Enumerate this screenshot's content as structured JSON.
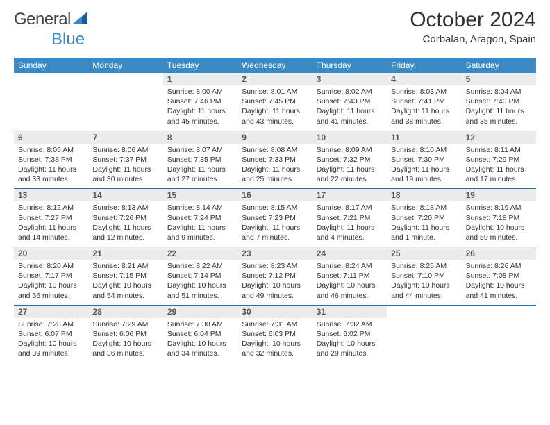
{
  "brand": {
    "name_part1": "General",
    "name_part2": "Blue",
    "triangle_color": "#1b5a96"
  },
  "header": {
    "title": "October 2024",
    "location": "Corbalan, Aragon, Spain"
  },
  "colors": {
    "accent": "#3b8ac4",
    "row_divider": "#2a6ea8",
    "daynum_bg": "#ececec",
    "text": "#222222"
  },
  "typography": {
    "title_fontsize_pt": 22,
    "location_fontsize_pt": 11,
    "header_fontsize_pt": 9,
    "daynum_fontsize_pt": 9,
    "body_fontsize_pt": 8
  },
  "day_names": [
    "Sunday",
    "Monday",
    "Tuesday",
    "Wednesday",
    "Thursday",
    "Friday",
    "Saturday"
  ],
  "weeks": [
    [
      {
        "num": "",
        "lines": []
      },
      {
        "num": "",
        "lines": []
      },
      {
        "num": "1",
        "lines": [
          "Sunrise: 8:00 AM",
          "Sunset: 7:46 PM",
          "Daylight: 11 hours",
          "and 45 minutes."
        ]
      },
      {
        "num": "2",
        "lines": [
          "Sunrise: 8:01 AM",
          "Sunset: 7:45 PM",
          "Daylight: 11 hours",
          "and 43 minutes."
        ]
      },
      {
        "num": "3",
        "lines": [
          "Sunrise: 8:02 AM",
          "Sunset: 7:43 PM",
          "Daylight: 11 hours",
          "and 41 minutes."
        ]
      },
      {
        "num": "4",
        "lines": [
          "Sunrise: 8:03 AM",
          "Sunset: 7:41 PM",
          "Daylight: 11 hours",
          "and 38 minutes."
        ]
      },
      {
        "num": "5",
        "lines": [
          "Sunrise: 8:04 AM",
          "Sunset: 7:40 PM",
          "Daylight: 11 hours",
          "and 35 minutes."
        ]
      }
    ],
    [
      {
        "num": "6",
        "lines": [
          "Sunrise: 8:05 AM",
          "Sunset: 7:38 PM",
          "Daylight: 11 hours",
          "and 33 minutes."
        ]
      },
      {
        "num": "7",
        "lines": [
          "Sunrise: 8:06 AM",
          "Sunset: 7:37 PM",
          "Daylight: 11 hours",
          "and 30 minutes."
        ]
      },
      {
        "num": "8",
        "lines": [
          "Sunrise: 8:07 AM",
          "Sunset: 7:35 PM",
          "Daylight: 11 hours",
          "and 27 minutes."
        ]
      },
      {
        "num": "9",
        "lines": [
          "Sunrise: 8:08 AM",
          "Sunset: 7:33 PM",
          "Daylight: 11 hours",
          "and 25 minutes."
        ]
      },
      {
        "num": "10",
        "lines": [
          "Sunrise: 8:09 AM",
          "Sunset: 7:32 PM",
          "Daylight: 11 hours",
          "and 22 minutes."
        ]
      },
      {
        "num": "11",
        "lines": [
          "Sunrise: 8:10 AM",
          "Sunset: 7:30 PM",
          "Daylight: 11 hours",
          "and 19 minutes."
        ]
      },
      {
        "num": "12",
        "lines": [
          "Sunrise: 8:11 AM",
          "Sunset: 7:29 PM",
          "Daylight: 11 hours",
          "and 17 minutes."
        ]
      }
    ],
    [
      {
        "num": "13",
        "lines": [
          "Sunrise: 8:12 AM",
          "Sunset: 7:27 PM",
          "Daylight: 11 hours",
          "and 14 minutes."
        ]
      },
      {
        "num": "14",
        "lines": [
          "Sunrise: 8:13 AM",
          "Sunset: 7:26 PM",
          "Daylight: 11 hours",
          "and 12 minutes."
        ]
      },
      {
        "num": "15",
        "lines": [
          "Sunrise: 8:14 AM",
          "Sunset: 7:24 PM",
          "Daylight: 11 hours",
          "and 9 minutes."
        ]
      },
      {
        "num": "16",
        "lines": [
          "Sunrise: 8:15 AM",
          "Sunset: 7:23 PM",
          "Daylight: 11 hours",
          "and 7 minutes."
        ]
      },
      {
        "num": "17",
        "lines": [
          "Sunrise: 8:17 AM",
          "Sunset: 7:21 PM",
          "Daylight: 11 hours",
          "and 4 minutes."
        ]
      },
      {
        "num": "18",
        "lines": [
          "Sunrise: 8:18 AM",
          "Sunset: 7:20 PM",
          "Daylight: 11 hours",
          "and 1 minute."
        ]
      },
      {
        "num": "19",
        "lines": [
          "Sunrise: 8:19 AM",
          "Sunset: 7:18 PM",
          "Daylight: 10 hours",
          "and 59 minutes."
        ]
      }
    ],
    [
      {
        "num": "20",
        "lines": [
          "Sunrise: 8:20 AM",
          "Sunset: 7:17 PM",
          "Daylight: 10 hours",
          "and 56 minutes."
        ]
      },
      {
        "num": "21",
        "lines": [
          "Sunrise: 8:21 AM",
          "Sunset: 7:15 PM",
          "Daylight: 10 hours",
          "and 54 minutes."
        ]
      },
      {
        "num": "22",
        "lines": [
          "Sunrise: 8:22 AM",
          "Sunset: 7:14 PM",
          "Daylight: 10 hours",
          "and 51 minutes."
        ]
      },
      {
        "num": "23",
        "lines": [
          "Sunrise: 8:23 AM",
          "Sunset: 7:12 PM",
          "Daylight: 10 hours",
          "and 49 minutes."
        ]
      },
      {
        "num": "24",
        "lines": [
          "Sunrise: 8:24 AM",
          "Sunset: 7:11 PM",
          "Daylight: 10 hours",
          "and 46 minutes."
        ]
      },
      {
        "num": "25",
        "lines": [
          "Sunrise: 8:25 AM",
          "Sunset: 7:10 PM",
          "Daylight: 10 hours",
          "and 44 minutes."
        ]
      },
      {
        "num": "26",
        "lines": [
          "Sunrise: 8:26 AM",
          "Sunset: 7:08 PM",
          "Daylight: 10 hours",
          "and 41 minutes."
        ]
      }
    ],
    [
      {
        "num": "27",
        "lines": [
          "Sunrise: 7:28 AM",
          "Sunset: 6:07 PM",
          "Daylight: 10 hours",
          "and 39 minutes."
        ]
      },
      {
        "num": "28",
        "lines": [
          "Sunrise: 7:29 AM",
          "Sunset: 6:06 PM",
          "Daylight: 10 hours",
          "and 36 minutes."
        ]
      },
      {
        "num": "29",
        "lines": [
          "Sunrise: 7:30 AM",
          "Sunset: 6:04 PM",
          "Daylight: 10 hours",
          "and 34 minutes."
        ]
      },
      {
        "num": "30",
        "lines": [
          "Sunrise: 7:31 AM",
          "Sunset: 6:03 PM",
          "Daylight: 10 hours",
          "and 32 minutes."
        ]
      },
      {
        "num": "31",
        "lines": [
          "Sunrise: 7:32 AM",
          "Sunset: 6:02 PM",
          "Daylight: 10 hours",
          "and 29 minutes."
        ]
      },
      {
        "num": "",
        "lines": []
      },
      {
        "num": "",
        "lines": []
      }
    ]
  ]
}
